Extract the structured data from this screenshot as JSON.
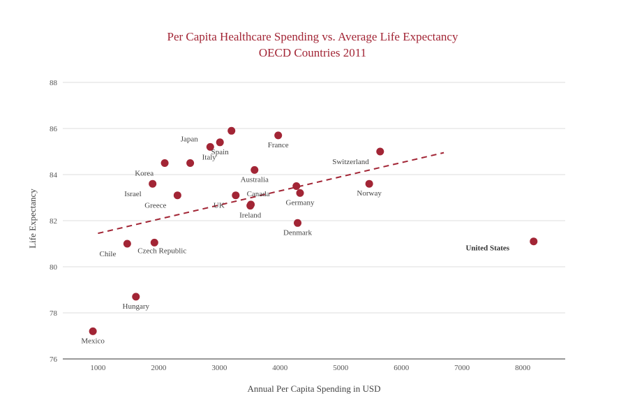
{
  "chart_data": {
    "type": "scatter",
    "title": "Per Capita Healthcare Spending vs. Average Life Expectancy",
    "subtitle": "OECD Countries 2011",
    "xlabel": "Annual Per Capita Spending in USD",
    "ylabel": "Life Expectancy",
    "xlim": [
      420,
      8700
    ],
    "ylim": [
      76,
      88
    ],
    "xticks": [
      1000,
      2000,
      3000,
      4000,
      5000,
      6000,
      7000,
      8000
    ],
    "yticks": [
      76,
      78,
      80,
      82,
      84,
      86,
      88
    ],
    "grid": true,
    "point_color": "#a22535",
    "grid_color": "#dddddd",
    "points": [
      {
        "name": "Mexico",
        "x": 916,
        "y": 77.2,
        "label_pos": "below"
      },
      {
        "name": "Chile",
        "x": 1482,
        "y": 81.0,
        "label_pos": "below-left"
      },
      {
        "name": "Hungary",
        "x": 1625,
        "y": 78.7,
        "label_pos": "below"
      },
      {
        "name": "Korea",
        "x": 2100,
        "y": 84.5,
        "label_pos": "below-left"
      },
      {
        "name": "Israel",
        "x": 1900,
        "y": 83.6,
        "label_pos": "below-left"
      },
      {
        "name": "Czech Republic",
        "x": 1930,
        "y": 81.05,
        "label_pos": "below-right"
      },
      {
        "name": "Greece",
        "x": 2310,
        "y": 83.1,
        "label_pos": "below-left"
      },
      {
        "name": "Italy",
        "x": 2520,
        "y": 84.5,
        "label_pos": "right"
      },
      {
        "name": "Japan",
        "x": 2850,
        "y": 85.2,
        "label_pos": "above-left"
      },
      {
        "name": "Spain",
        "x": 3010,
        "y": 85.4,
        "label_pos": "below"
      },
      {
        "name": "Japan-top",
        "label_hidden": true,
        "x": 3200,
        "y": 85.9,
        "label_pos": "none"
      },
      {
        "name": "UK",
        "x": 3270,
        "y": 83.1,
        "label_pos": "below-left"
      },
      {
        "name": "Canada",
        "x": 3520,
        "y": 82.7,
        "label_pos": "above-right"
      },
      {
        "name": "Ireland",
        "x": 3510,
        "y": 82.65,
        "label_pos": "below"
      },
      {
        "name": "Australia",
        "x": 3580,
        "y": 84.2,
        "label_pos": "below"
      },
      {
        "name": "France",
        "x": 3970,
        "y": 85.7,
        "label_pos": "below"
      },
      {
        "name": "Germany",
        "x": 4330,
        "y": 83.2,
        "label_pos": "below"
      },
      {
        "name": "Denmark",
        "x": 4290,
        "y": 81.9,
        "label_pos": "below"
      },
      {
        "name": "Denmark-top",
        "label_hidden": true,
        "x": 4270,
        "y": 83.5,
        "label_pos": "none"
      },
      {
        "name": "Switzerland",
        "x": 5650,
        "y": 85.0,
        "label_pos": "below-left"
      },
      {
        "name": "Norway",
        "x": 5470,
        "y": 83.6,
        "label_pos": "below"
      },
      {
        "name": "United States",
        "x": 8180,
        "y": 81.1,
        "label_pos": "left",
        "bold": true
      }
    ],
    "trendline": {
      "style": "dashed",
      "color": "#a22535",
      "start": {
        "x": 1000,
        "y": 81.45
      },
      "end": {
        "x": 6700,
        "y": 84.95
      }
    }
  }
}
